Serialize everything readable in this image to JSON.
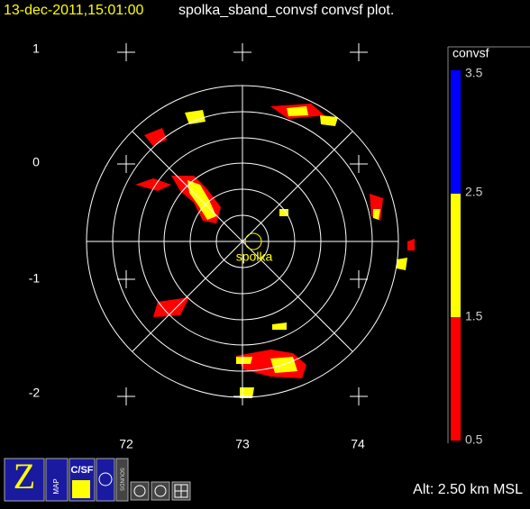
{
  "header": {
    "datetime": "13-dec-2011,15:01:00",
    "title": "spolka_sband_convsf convsf  plot."
  },
  "axes": {
    "x_labels": [
      "72",
      "73",
      "74"
    ],
    "y_labels": [
      "1",
      "0",
      "-1",
      "-2"
    ]
  },
  "station": "spolka",
  "colorbar": {
    "label": "convsf",
    "ticks": [
      "3.5",
      "2.5",
      "1.5",
      "0.5"
    ]
  },
  "toolbar": {
    "buttons": [
      "MAP",
      "C/SF",
      "SOUNDS"
    ]
  },
  "status": "Alt: 2.50 km MSL"
}
